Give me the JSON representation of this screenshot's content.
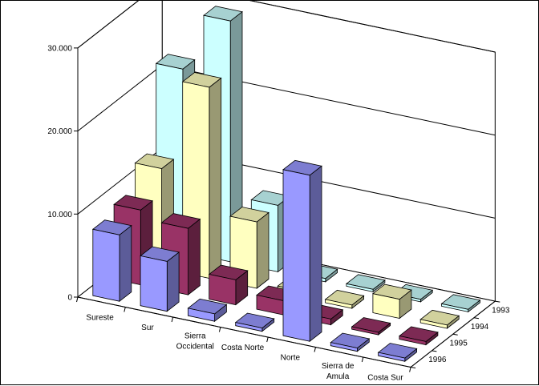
{
  "chart_data": {
    "type": "bar",
    "subtype": "3d-column",
    "title": "",
    "xlabel": "",
    "ylabel": "",
    "ylim": [
      0,
      30000
    ],
    "y_ticks": [
      0,
      10000,
      20000,
      30000
    ],
    "y_tick_labels": [
      "0",
      "10.000",
      "20.000",
      "30.000"
    ],
    "grid": true,
    "categories": [
      "Sureste",
      "Sur",
      "Sierra Occidental",
      "Costa Norte",
      "Norte",
      "Sierra de Amula",
      "Costa Sur"
    ],
    "category_labels": [
      [
        "Sureste"
      ],
      [
        "Sur"
      ],
      [
        "Sierra",
        "Occidental"
      ],
      [
        "Costa Norte"
      ],
      [
        "Norte"
      ],
      [
        "Sierra de",
        "Amula"
      ],
      [
        "Costa Sur"
      ]
    ],
    "series": [
      {
        "name": "1993",
        "color": "#ccffff",
        "values": [
          22000,
          29000,
          8000,
          400,
          300,
          300,
          300
        ]
      },
      {
        "name": "1994",
        "color": "#ffffc0",
        "values": [
          12000,
          23000,
          8000,
          800,
          400,
          2300,
          400
        ]
      },
      {
        "name": "1995",
        "color": "#993366",
        "values": [
          9000,
          8000,
          3000,
          1700,
          700,
          300,
          400
        ]
      },
      {
        "name": "1996",
        "color": "#9999ff",
        "values": [
          8000,
          6000,
          900,
          400,
          20000,
          400,
          400
        ]
      }
    ]
  }
}
